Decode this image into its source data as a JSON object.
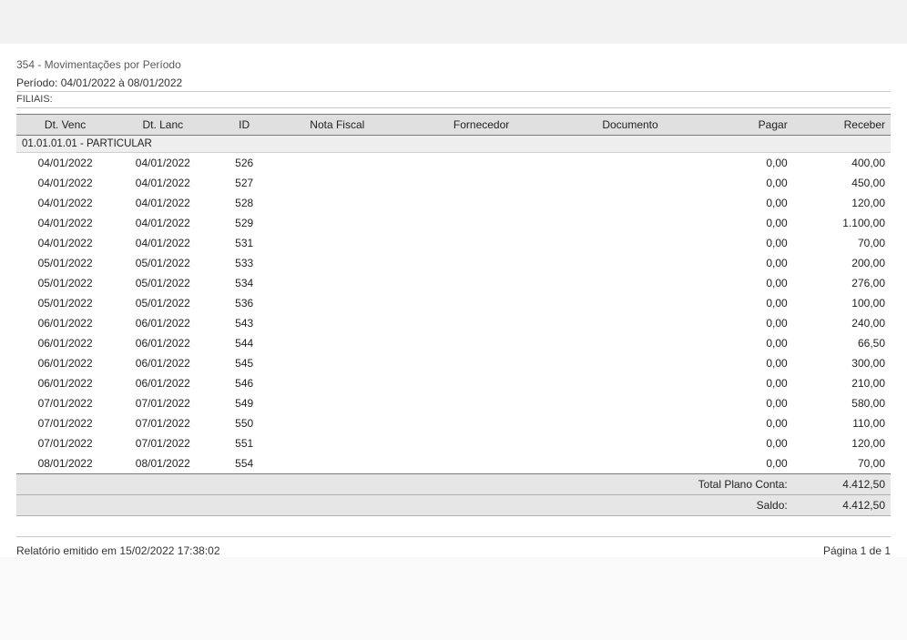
{
  "report": {
    "title": "354 - Movimentações por Período",
    "period_label": "Período:",
    "period_value": "04/01/2022 à 08/01/2022",
    "filiais_label": "FILIAIS:",
    "filiais_value": ""
  },
  "columns": {
    "dt_venc": "Dt. Venc",
    "dt_lanc": "Dt. Lanc",
    "id": "ID",
    "nota_fiscal": "Nota Fiscal",
    "fornecedor": "Fornecedor",
    "documento": "Documento",
    "pagar": "Pagar",
    "receber": "Receber"
  },
  "group": {
    "label": "01.01.01.01 - PARTICULAR"
  },
  "rows": [
    {
      "dt_venc": "04/01/2022",
      "dt_lanc": "04/01/2022",
      "id": "526",
      "nota_fiscal": "",
      "fornecedor": "",
      "documento": "",
      "pagar": "0,00",
      "receber": "400,00"
    },
    {
      "dt_venc": "04/01/2022",
      "dt_lanc": "04/01/2022",
      "id": "527",
      "nota_fiscal": "",
      "fornecedor": "",
      "documento": "",
      "pagar": "0,00",
      "receber": "450,00"
    },
    {
      "dt_venc": "04/01/2022",
      "dt_lanc": "04/01/2022",
      "id": "528",
      "nota_fiscal": "",
      "fornecedor": "",
      "documento": "",
      "pagar": "0,00",
      "receber": "120,00"
    },
    {
      "dt_venc": "04/01/2022",
      "dt_lanc": "04/01/2022",
      "id": "529",
      "nota_fiscal": "",
      "fornecedor": "",
      "documento": "",
      "pagar": "0,00",
      "receber": "1.100,00"
    },
    {
      "dt_venc": "04/01/2022",
      "dt_lanc": "04/01/2022",
      "id": "531",
      "nota_fiscal": "",
      "fornecedor": "",
      "documento": "",
      "pagar": "0,00",
      "receber": "70,00"
    },
    {
      "dt_venc": "05/01/2022",
      "dt_lanc": "05/01/2022",
      "id": "533",
      "nota_fiscal": "",
      "fornecedor": "",
      "documento": "",
      "pagar": "0,00",
      "receber": "200,00"
    },
    {
      "dt_venc": "05/01/2022",
      "dt_lanc": "05/01/2022",
      "id": "534",
      "nota_fiscal": "",
      "fornecedor": "",
      "documento": "",
      "pagar": "0,00",
      "receber": "276,00"
    },
    {
      "dt_venc": "05/01/2022",
      "dt_lanc": "05/01/2022",
      "id": "536",
      "nota_fiscal": "",
      "fornecedor": "",
      "documento": "",
      "pagar": "0,00",
      "receber": "100,00"
    },
    {
      "dt_venc": "06/01/2022",
      "dt_lanc": "06/01/2022",
      "id": "543",
      "nota_fiscal": "",
      "fornecedor": "",
      "documento": "",
      "pagar": "0,00",
      "receber": "240,00"
    },
    {
      "dt_venc": "06/01/2022",
      "dt_lanc": "06/01/2022",
      "id": "544",
      "nota_fiscal": "",
      "fornecedor": "",
      "documento": "",
      "pagar": "0,00",
      "receber": "66,50"
    },
    {
      "dt_venc": "06/01/2022",
      "dt_lanc": "06/01/2022",
      "id": "545",
      "nota_fiscal": "",
      "fornecedor": "",
      "documento": "",
      "pagar": "0,00",
      "receber": "300,00"
    },
    {
      "dt_venc": "06/01/2022",
      "dt_lanc": "06/01/2022",
      "id": "546",
      "nota_fiscal": "",
      "fornecedor": "",
      "documento": "",
      "pagar": "0,00",
      "receber": "210,00"
    },
    {
      "dt_venc": "07/01/2022",
      "dt_lanc": "07/01/2022",
      "id": "549",
      "nota_fiscal": "",
      "fornecedor": "",
      "documento": "",
      "pagar": "0,00",
      "receber": "580,00"
    },
    {
      "dt_venc": "07/01/2022",
      "dt_lanc": "07/01/2022",
      "id": "550",
      "nota_fiscal": "",
      "fornecedor": "",
      "documento": "",
      "pagar": "0,00",
      "receber": "110,00"
    },
    {
      "dt_venc": "07/01/2022",
      "dt_lanc": "07/01/2022",
      "id": "551",
      "nota_fiscal": "",
      "fornecedor": "",
      "documento": "",
      "pagar": "0,00",
      "receber": "120,00"
    },
    {
      "dt_venc": "08/01/2022",
      "dt_lanc": "08/01/2022",
      "id": "554",
      "nota_fiscal": "",
      "fornecedor": "",
      "documento": "",
      "pagar": "0,00",
      "receber": "70,00"
    }
  ],
  "totals": {
    "plano_conta_label": "Total Plano Conta:",
    "plano_conta_value": "4.412,50",
    "saldo_label": "Saldo:",
    "saldo_value": "4.412,50"
  },
  "footer": {
    "emitted_label": "Relatório emitido em",
    "emitted_value": "15/02/2022 17:38:02",
    "page_label": "Página 1 de 1"
  },
  "style": {
    "header_bg": "#e0e0e0",
    "group_bg": "#eeeeee",
    "total_bg": "#e6e6e6",
    "border_dark": "#7a7a7a",
    "border_light": "#c8c8c8",
    "text_color": "#222222",
    "muted_text": "#5a5a5a",
    "page_bg": "#ffffff",
    "body_bg": "#fafafa",
    "font_family": "Arial",
    "base_fontsize_pt": 9
  }
}
